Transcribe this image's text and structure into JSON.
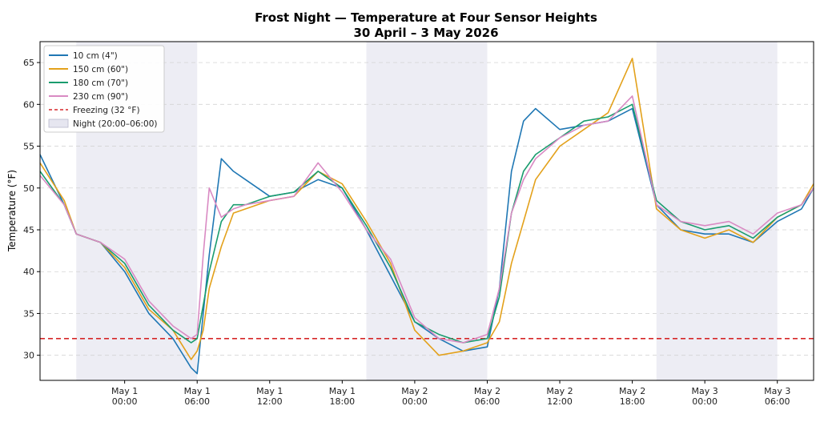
{
  "chart_data": {
    "type": "line",
    "title": "Frost Night — Temperature at Four Sensor Heights",
    "subtitle": "30 April – 3 May 2026",
    "xlabel": "",
    "ylabel": "Temperature (°F)",
    "ylim": [
      27,
      67.5
    ],
    "xlim": [
      "2026-04-30 17:00",
      "2026-05-03 09:00"
    ],
    "yticks": [
      30,
      35,
      40,
      45,
      50,
      55,
      60,
      65
    ],
    "xticks": [
      {
        "t": "2026-05-01 00:00",
        "line1": "May 1",
        "line2": "00:00"
      },
      {
        "t": "2026-05-01 06:00",
        "line1": "May 1",
        "line2": "06:00"
      },
      {
        "t": "2026-05-01 12:00",
        "line1": "May 1",
        "line2": "12:00"
      },
      {
        "t": "2026-05-01 18:00",
        "line1": "May 1",
        "line2": "18:00"
      },
      {
        "t": "2026-05-02 00:00",
        "line1": "May 2",
        "line2": "00:00"
      },
      {
        "t": "2026-05-02 06:00",
        "line1": "May 2",
        "line2": "06:00"
      },
      {
        "t": "2026-05-02 12:00",
        "line1": "May 2",
        "line2": "12:00"
      },
      {
        "t": "2026-05-02 18:00",
        "line1": "May 2",
        "line2": "18:00"
      },
      {
        "t": "2026-05-03 00:00",
        "line1": "May 3",
        "line2": "00:00"
      },
      {
        "t": "2026-05-03 06:00",
        "line1": "May 3",
        "line2": "06:00"
      }
    ],
    "night_bands": [
      {
        "start": "2026-04-30 20:00",
        "end": "2026-05-01 06:00"
      },
      {
        "start": "2026-05-01 20:00",
        "end": "2026-05-02 06:00"
      },
      {
        "start": "2026-05-02 20:00",
        "end": "2026-05-03 06:00"
      }
    ],
    "freezing_line": {
      "y": 32,
      "label": "Freezing (32 °F)",
      "color": "#d62728"
    },
    "grid": "horizontal dashed",
    "legend_position": "top-left",
    "night_label": "Night (20:00–06:00)",
    "night_color": "#e6e6f0",
    "series": [
      {
        "name": "10 cm (4\")",
        "color": "#1f77b4",
        "x": [
          "2026-04-30 17:00",
          "2026-04-30 19:00",
          "2026-04-30 20:00",
          "2026-04-30 22:00",
          "2026-05-01 00:00",
          "2026-05-01 02:00",
          "2026-05-01 04:00",
          "2026-05-01 05:30",
          "2026-05-01 06:00",
          "2026-05-01 06:30",
          "2026-05-01 07:00",
          "2026-05-01 08:00",
          "2026-05-01 09:00",
          "2026-05-01 10:00",
          "2026-05-01 12:00",
          "2026-05-01 14:00",
          "2026-05-01 16:00",
          "2026-05-01 18:00",
          "2026-05-01 20:00",
          "2026-05-01 22:00",
          "2026-05-02 00:00",
          "2026-05-02 02:00",
          "2026-05-02 04:00",
          "2026-05-02 06:00",
          "2026-05-02 07:00",
          "2026-05-02 08:00",
          "2026-05-02 09:00",
          "2026-05-02 10:00",
          "2026-05-02 12:00",
          "2026-05-02 14:00",
          "2026-05-02 16:00",
          "2026-05-02 18:00",
          "2026-05-02 20:00",
          "2026-05-02 22:00",
          "2026-05-03 00:00",
          "2026-05-03 02:00",
          "2026-05-03 04:00",
          "2026-05-03 06:00",
          "2026-05-03 08:00",
          "2026-05-03 09:00"
        ],
        "y": [
          54,
          48,
          44.5,
          43.5,
          40,
          35,
          32,
          28.5,
          27.8,
          35,
          42,
          53.5,
          52,
          51,
          49,
          49.5,
          51,
          50,
          45,
          39.5,
          34,
          32,
          30.5,
          31,
          38,
          52,
          58,
          59.5,
          57,
          57.5,
          58,
          59.5,
          48,
          45,
          44.5,
          44.5,
          43.5,
          46,
          47.5,
          50
        ]
      },
      {
        "name": "150 cm (60\")",
        "color": "#e3a11b",
        "x": [
          "2026-04-30 17:00",
          "2026-04-30 19:00",
          "2026-04-30 20:00",
          "2026-04-30 22:00",
          "2026-05-01 00:00",
          "2026-05-01 02:00",
          "2026-05-01 04:00",
          "2026-05-01 05:30",
          "2026-05-01 06:00",
          "2026-05-01 06:30",
          "2026-05-01 07:00",
          "2026-05-01 08:00",
          "2026-05-01 09:00",
          "2026-05-01 10:00",
          "2026-05-01 12:00",
          "2026-05-01 14:00",
          "2026-05-01 16:00",
          "2026-05-01 18:00",
          "2026-05-01 20:00",
          "2026-05-01 22:00",
          "2026-05-02 00:00",
          "2026-05-02 02:00",
          "2026-05-02 04:00",
          "2026-05-02 06:00",
          "2026-05-02 07:00",
          "2026-05-02 08:00",
          "2026-05-02 09:00",
          "2026-05-02 10:00",
          "2026-05-02 12:00",
          "2026-05-02 14:00",
          "2026-05-02 16:00",
          "2026-05-02 18:00",
          "2026-05-02 20:00",
          "2026-05-02 22:00",
          "2026-05-03 00:00",
          "2026-05-03 02:00",
          "2026-05-03 04:00",
          "2026-05-03 06:00",
          "2026-05-03 08:00",
          "2026-05-03 09:00"
        ],
        "y": [
          53,
          48.5,
          44.5,
          43.5,
          40.5,
          35.5,
          33,
          29.5,
          30.5,
          33,
          38,
          43,
          47,
          47.5,
          48.5,
          49,
          52,
          50.5,
          46,
          41,
          33,
          30,
          30.5,
          31.5,
          34,
          41,
          46,
          51,
          55,
          57,
          59,
          65.5,
          47.5,
          45,
          44,
          45,
          43.5,
          46.5,
          48,
          50.5
        ]
      },
      {
        "name": "180 cm (70\")",
        "color": "#1a9c6e",
        "x": [
          "2026-04-30 17:00",
          "2026-04-30 19:00",
          "2026-04-30 20:00",
          "2026-04-30 22:00",
          "2026-05-01 00:00",
          "2026-05-01 02:00",
          "2026-05-01 04:00",
          "2026-05-01 05:30",
          "2026-05-01 06:00",
          "2026-05-01 06:30",
          "2026-05-01 07:00",
          "2026-05-01 08:00",
          "2026-05-01 09:00",
          "2026-05-01 10:00",
          "2026-05-01 12:00",
          "2026-05-01 14:00",
          "2026-05-01 16:00",
          "2026-05-01 18:00",
          "2026-05-01 20:00",
          "2026-05-01 22:00",
          "2026-05-02 00:00",
          "2026-05-02 02:00",
          "2026-05-02 04:00",
          "2026-05-02 06:00",
          "2026-05-02 07:00",
          "2026-05-02 08:00",
          "2026-05-02 09:00",
          "2026-05-02 10:00",
          "2026-05-02 12:00",
          "2026-05-02 14:00",
          "2026-05-02 16:00",
          "2026-05-02 18:00",
          "2026-05-02 20:00",
          "2026-05-02 22:00",
          "2026-05-03 00:00",
          "2026-05-03 02:00",
          "2026-05-03 04:00",
          "2026-05-03 06:00",
          "2026-05-03 08:00",
          "2026-05-03 09:00"
        ],
        "y": [
          52,
          48,
          44.5,
          43.5,
          41,
          36,
          33,
          31.5,
          32,
          36,
          40,
          46,
          48,
          48,
          49,
          49.5,
          52,
          50,
          45.5,
          40.5,
          34,
          32.5,
          31.5,
          32,
          37,
          47,
          52,
          54,
          56,
          58,
          58.5,
          60,
          48.5,
          46,
          45,
          45.5,
          44,
          46.5,
          48,
          50
        ]
      },
      {
        "name": "230 cm (90\")",
        "color": "#d98ac3",
        "x": [
          "2026-04-30 17:00",
          "2026-04-30 19:00",
          "2026-04-30 20:00",
          "2026-04-30 22:00",
          "2026-05-01 00:00",
          "2026-05-01 02:00",
          "2026-05-01 04:00",
          "2026-05-01 05:30",
          "2026-05-01 06:00",
          "2026-05-01 06:30",
          "2026-05-01 07:00",
          "2026-05-01 08:00",
          "2026-05-01 09:00",
          "2026-05-01 10:00",
          "2026-05-01 12:00",
          "2026-05-01 14:00",
          "2026-05-01 16:00",
          "2026-05-01 18:00",
          "2026-05-01 20:00",
          "2026-05-01 22:00",
          "2026-05-02 00:00",
          "2026-05-02 02:00",
          "2026-05-02 04:00",
          "2026-05-02 06:00",
          "2026-05-02 07:00",
          "2026-05-02 08:00",
          "2026-05-02 09:00",
          "2026-05-02 10:00",
          "2026-05-02 12:00",
          "2026-05-02 14:00",
          "2026-05-02 16:00",
          "2026-05-02 18:00",
          "2026-05-02 20:00",
          "2026-05-02 22:00",
          "2026-05-03 00:00",
          "2026-05-03 02:00",
          "2026-05-03 04:00",
          "2026-05-03 06:00",
          "2026-05-03 08:00",
          "2026-05-03 09:00"
        ],
        "y": [
          51.5,
          48,
          44.5,
          43.5,
          41.5,
          36.5,
          33.5,
          32,
          32.5,
          42,
          50,
          46.5,
          47.5,
          48,
          48.5,
          49,
          53,
          49.5,
          45,
          41.5,
          34.5,
          32,
          31.5,
          32.5,
          38,
          47,
          51,
          53.5,
          56,
          57.5,
          58,
          61,
          48,
          46,
          45.5,
          46,
          44.5,
          47,
          48,
          50
        ]
      }
    ]
  }
}
